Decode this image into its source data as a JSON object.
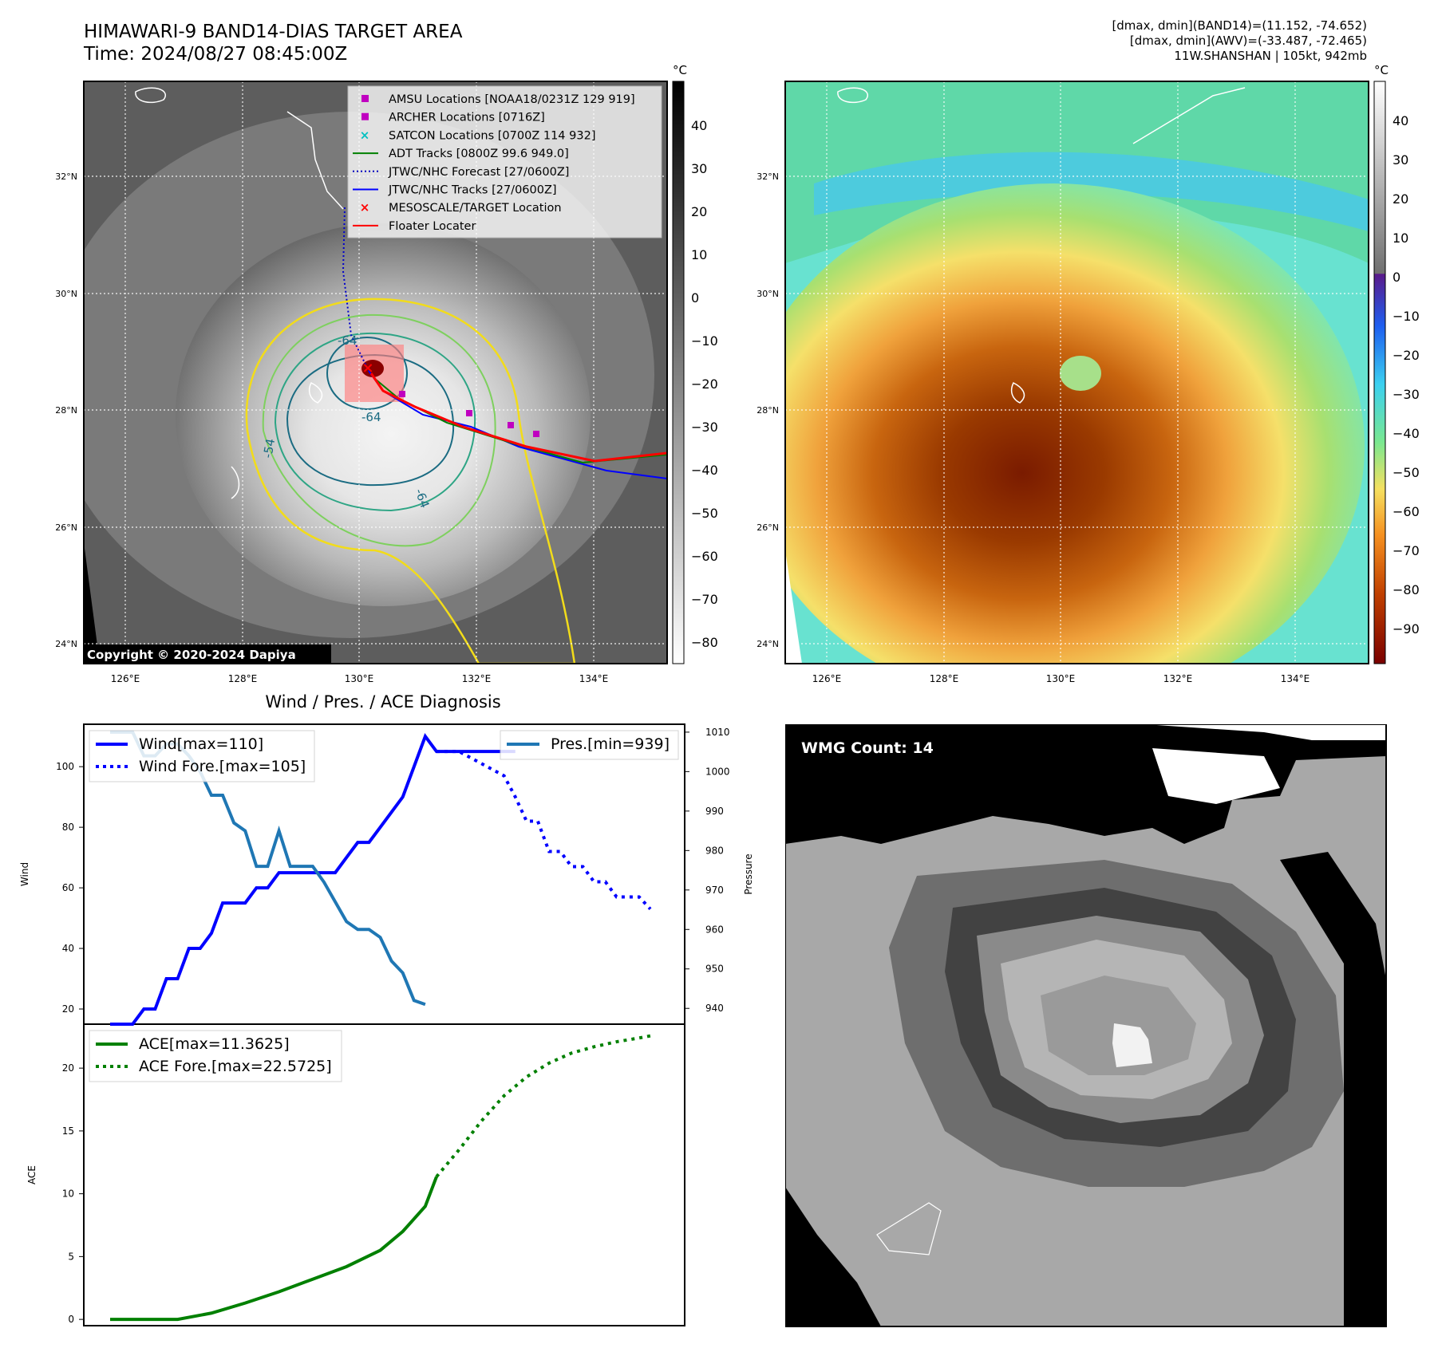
{
  "header": {
    "title_line1": "HIMAWARI-9 BAND14-DIAS TARGET AREA",
    "title_line2": "Time: 2024/08/27 08:45:00Z",
    "info_line1": "[dmax, dmin](BAND14)=(11.152, -74.652)",
    "info_line2": "[dmax, dmin](AWV)=(-33.487, -72.465)",
    "info_line3": "11W.SHANSHAN | 105kt, 942mb"
  },
  "ir_map": {
    "copyright": "Copyright © 2020-2024 Dapiya",
    "lat_labels": [
      "32°N",
      "30°N",
      "28°N",
      "26°N",
      "24°N"
    ],
    "lon_labels": [
      "126°E",
      "128°E",
      "130°E",
      "132°E",
      "134°E"
    ],
    "contour_labels": [
      "-64",
      "-64",
      "-54",
      "-64"
    ],
    "legend": [
      {
        "label": "AMSU Locations [NOAA18/0231Z 129 919]",
        "color": "#c000c0"
      },
      {
        "label": "ARCHER Locations [0716Z]",
        "color": "#c000c0"
      },
      {
        "label": "SATCON Locations [0700Z 114 932]",
        "color": "#00c0c0"
      },
      {
        "label": "ADT Tracks [0800Z 99.6 949.0]",
        "color": "#008000"
      },
      {
        "label": "JTWC/NHC Forecast [27/0600Z]",
        "color": "#0000c0"
      },
      {
        "label": "JTWC/NHC Tracks [27/0600Z]",
        "color": "#0000ff"
      },
      {
        "label": "MESOSCALE/TARGET Location",
        "color": "#ff0000"
      },
      {
        "label": "Floater Locater",
        "color": "#ff0000"
      }
    ],
    "colorbar": {
      "unit": "°C",
      "ticks": [
        "40",
        "30",
        "20",
        "10",
        "0",
        "−10",
        "−20",
        "−30",
        "−40",
        "−50",
        "−60",
        "−70",
        "−80"
      ]
    }
  },
  "wv_map": {
    "lat_labels": [
      "32°N",
      "30°N",
      "28°N",
      "26°N",
      "24°N"
    ],
    "lon_labels": [
      "126°E",
      "128°E",
      "130°E",
      "132°E",
      "134°E"
    ],
    "colorbar": {
      "unit": "°C",
      "ticks": [
        "40",
        "30",
        "20",
        "10",
        "0",
        "−10",
        "−20",
        "−30",
        "−40",
        "−50",
        "−60",
        "−70",
        "−80",
        "−90"
      ]
    }
  },
  "wmg": {
    "label": "WMG Count: 14"
  },
  "chart_data": [
    {
      "type": "line",
      "title": "Wind / Pres. / ACE Diagnosis",
      "ylabel": "Wind",
      "y2label": "Pressure",
      "ylim": [
        15,
        114
      ],
      "y2lim": [
        936,
        1012
      ],
      "yticks": [
        20,
        40,
        60,
        80,
        100
      ],
      "y2ticks": [
        940,
        950,
        960,
        970,
        980,
        990,
        1000,
        1010
      ],
      "x_range": [
        0,
        48
      ],
      "series": [
        {
          "name": "Wind[max=110]",
          "color": "#0000ff",
          "style": "solid",
          "x": [
            0,
            2,
            3,
            4,
            5,
            6,
            7,
            8,
            9,
            10,
            11,
            12,
            13,
            14,
            15,
            16,
            17,
            18,
            19,
            20,
            21,
            22,
            23,
            24,
            25,
            26,
            27,
            28,
            29,
            30,
            31,
            32,
            33,
            34,
            35,
            36
          ],
          "values": [
            15,
            15,
            20,
            20,
            30,
            30,
            40,
            40,
            45,
            55,
            55,
            55,
            60,
            60,
            65,
            65,
            65,
            65,
            65,
            65,
            70,
            75,
            75,
            80,
            85,
            90,
            100,
            110,
            105,
            105,
            105,
            105,
            105,
            105,
            105,
            105
          ]
        },
        {
          "name": "Wind Fore.[max=105]",
          "color": "#0000ff",
          "style": "dotted",
          "x": [
            29,
            31,
            33,
            35,
            36,
            37,
            38,
            39,
            40,
            41,
            42,
            43,
            44,
            45,
            46,
            47,
            48
          ],
          "values": [
            105,
            105,
            101,
            97,
            90,
            82,
            82,
            72,
            72,
            67,
            67,
            62,
            62,
            57,
            57,
            57,
            53
          ]
        },
        {
          "name": "Pres.[min=939]",
          "color": "#1f77b4",
          "style": "solid",
          "axis": "right",
          "x": [
            0,
            1,
            2,
            3,
            4,
            5,
            6,
            7,
            8,
            9,
            10,
            11,
            12,
            13,
            14,
            15,
            16,
            17,
            18,
            19,
            20,
            21,
            22,
            23,
            24,
            25,
            26,
            27,
            28
          ],
          "values": [
            1010,
            1010,
            1010,
            1004,
            1004,
            1007,
            1007,
            1004,
            1000,
            994,
            994,
            987,
            985,
            976,
            976,
            985,
            976,
            976,
            976,
            972,
            967,
            962,
            960,
            960,
            958,
            952,
            949,
            942,
            941
          ]
        }
      ]
    },
    {
      "type": "line",
      "ylabel": "ACE",
      "ylim": [
        -0.5,
        23.5
      ],
      "yticks": [
        0,
        5,
        10,
        15,
        20
      ],
      "x_range": [
        0,
        48
      ],
      "series": [
        {
          "name": "ACE[max=11.3625]",
          "color": "#008000",
          "style": "solid",
          "x": [
            0,
            3,
            6,
            9,
            12,
            15,
            18,
            21,
            24,
            26,
            28,
            29
          ],
          "values": [
            0,
            0,
            0,
            0.5,
            1.3,
            2.2,
            3.2,
            4.2,
            5.5,
            7.0,
            9.0,
            11.36
          ]
        },
        {
          "name": "ACE Fore.[max=22.5725]",
          "color": "#008000",
          "style": "dotted",
          "x": [
            29,
            31,
            33,
            35,
            37,
            39,
            41,
            43,
            45,
            47,
            48
          ],
          "values": [
            11.36,
            13.5,
            15.8,
            17.8,
            19.3,
            20.4,
            21.2,
            21.7,
            22.1,
            22.4,
            22.57
          ]
        }
      ]
    }
  ]
}
